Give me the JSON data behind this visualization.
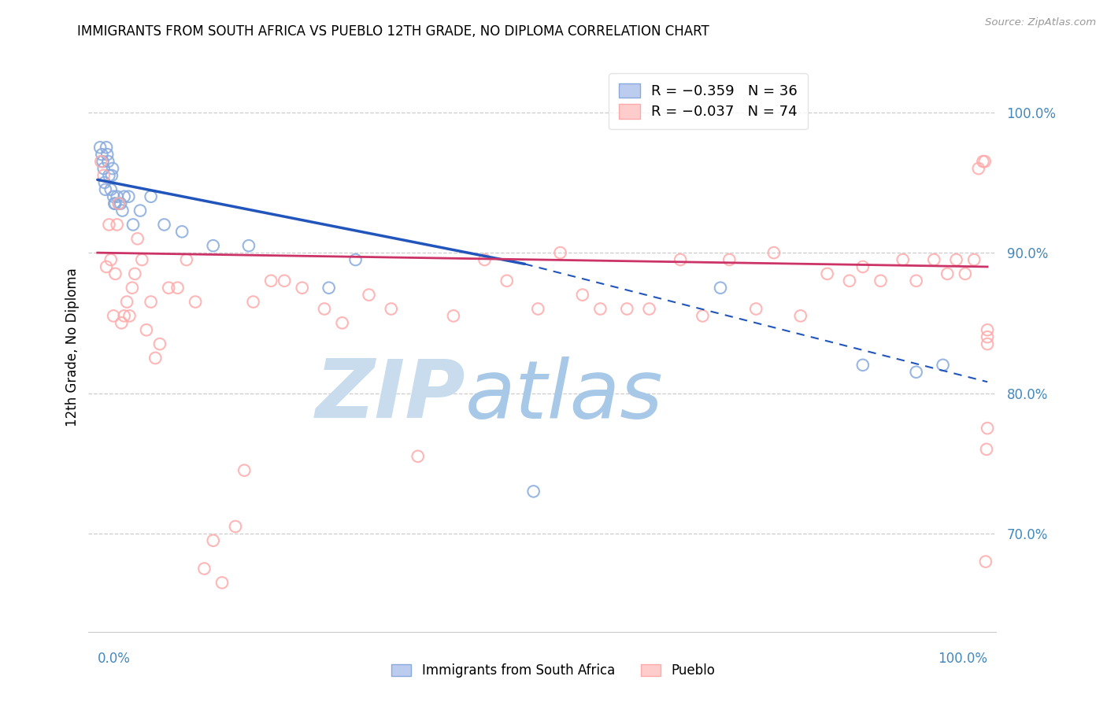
{
  "title": "IMMIGRANTS FROM SOUTH AFRICA VS PUEBLO 12TH GRADE, NO DIPLOMA CORRELATION CHART",
  "source": "Source: ZipAtlas.com",
  "ylabel": "12th Grade, No Diploma",
  "ytick_labels": [
    "100.0%",
    "90.0%",
    "80.0%",
    "70.0%"
  ],
  "ytick_values": [
    1.0,
    0.9,
    0.8,
    0.7
  ],
  "xlim": [
    -0.01,
    1.01
  ],
  "ylim": [
    0.63,
    1.035
  ],
  "legend_blue_label": "R = -0.359   N = 36",
  "legend_pink_label": "R = -0.037   N = 74",
  "blue_scatter_x": [
    0.003,
    0.005,
    0.006,
    0.007,
    0.008,
    0.009,
    0.01,
    0.011,
    0.012,
    0.013,
    0.015,
    0.016,
    0.017,
    0.018,
    0.019,
    0.02,
    0.022,
    0.024,
    0.026,
    0.028,
    0.03,
    0.035,
    0.04,
    0.048,
    0.06,
    0.075,
    0.095,
    0.13,
    0.17,
    0.26,
    0.29,
    0.49,
    0.7,
    0.86,
    0.92,
    0.95
  ],
  "blue_scatter_y": [
    0.975,
    0.97,
    0.965,
    0.96,
    0.95,
    0.945,
    0.975,
    0.97,
    0.965,
    0.955,
    0.945,
    0.955,
    0.96,
    0.94,
    0.935,
    0.935,
    0.94,
    0.935,
    0.935,
    0.93,
    0.94,
    0.94,
    0.92,
    0.93,
    0.94,
    0.92,
    0.915,
    0.905,
    0.905,
    0.875,
    0.895,
    0.73,
    0.875,
    0.82,
    0.815,
    0.82
  ],
  "pink_scatter_x": [
    0.004,
    0.007,
    0.01,
    0.013,
    0.015,
    0.018,
    0.02,
    0.022,
    0.024,
    0.027,
    0.03,
    0.033,
    0.036,
    0.039,
    0.042,
    0.045,
    0.05,
    0.055,
    0.06,
    0.065,
    0.07,
    0.08,
    0.09,
    0.1,
    0.11,
    0.12,
    0.13,
    0.14,
    0.155,
    0.165,
    0.175,
    0.195,
    0.21,
    0.23,
    0.255,
    0.275,
    0.305,
    0.33,
    0.36,
    0.4,
    0.435,
    0.46,
    0.495,
    0.52,
    0.545,
    0.565,
    0.595,
    0.62,
    0.655,
    0.68,
    0.71,
    0.74,
    0.76,
    0.79,
    0.82,
    0.845,
    0.86,
    0.88,
    0.905,
    0.92,
    0.94,
    0.955,
    0.965,
    0.975,
    0.985,
    0.99,
    0.995,
    0.997,
    0.998,
    0.999,
    1.0,
    1.0,
    1.0,
    1.0
  ],
  "pink_scatter_y": [
    0.965,
    0.955,
    0.89,
    0.92,
    0.895,
    0.855,
    0.885,
    0.92,
    0.935,
    0.85,
    0.855,
    0.865,
    0.855,
    0.875,
    0.885,
    0.91,
    0.895,
    0.845,
    0.865,
    0.825,
    0.835,
    0.875,
    0.875,
    0.895,
    0.865,
    0.675,
    0.695,
    0.665,
    0.705,
    0.745,
    0.865,
    0.88,
    0.88,
    0.875,
    0.86,
    0.85,
    0.87,
    0.86,
    0.755,
    0.855,
    0.895,
    0.88,
    0.86,
    0.9,
    0.87,
    0.86,
    0.86,
    0.86,
    0.895,
    0.855,
    0.895,
    0.86,
    0.9,
    0.855,
    0.885,
    0.88,
    0.89,
    0.88,
    0.895,
    0.88,
    0.895,
    0.885,
    0.895,
    0.885,
    0.895,
    0.96,
    0.965,
    0.965,
    0.68,
    0.76,
    0.84,
    0.845,
    0.775,
    0.835
  ],
  "blue_trend": [
    0.0,
    0.952,
    0.48,
    0.892
  ],
  "blue_dash": [
    0.48,
    0.892,
    1.0,
    0.808
  ],
  "pink_trend": [
    0.0,
    0.9,
    1.0,
    0.89
  ],
  "blue_color": "#88AADD",
  "pink_color": "#FFAAAA",
  "blue_line_color": "#2255BB",
  "pink_line_color": "#CC3366",
  "watermark_zip_color": "#C8DCEE",
  "watermark_atlas_color": "#A8C8E8",
  "grid_color": "#CCCCCC",
  "background_color": "#FFFFFF",
  "axis_label_color": "#4488BB",
  "title_fontsize": 12,
  "axis_tick_fontsize": 12
}
